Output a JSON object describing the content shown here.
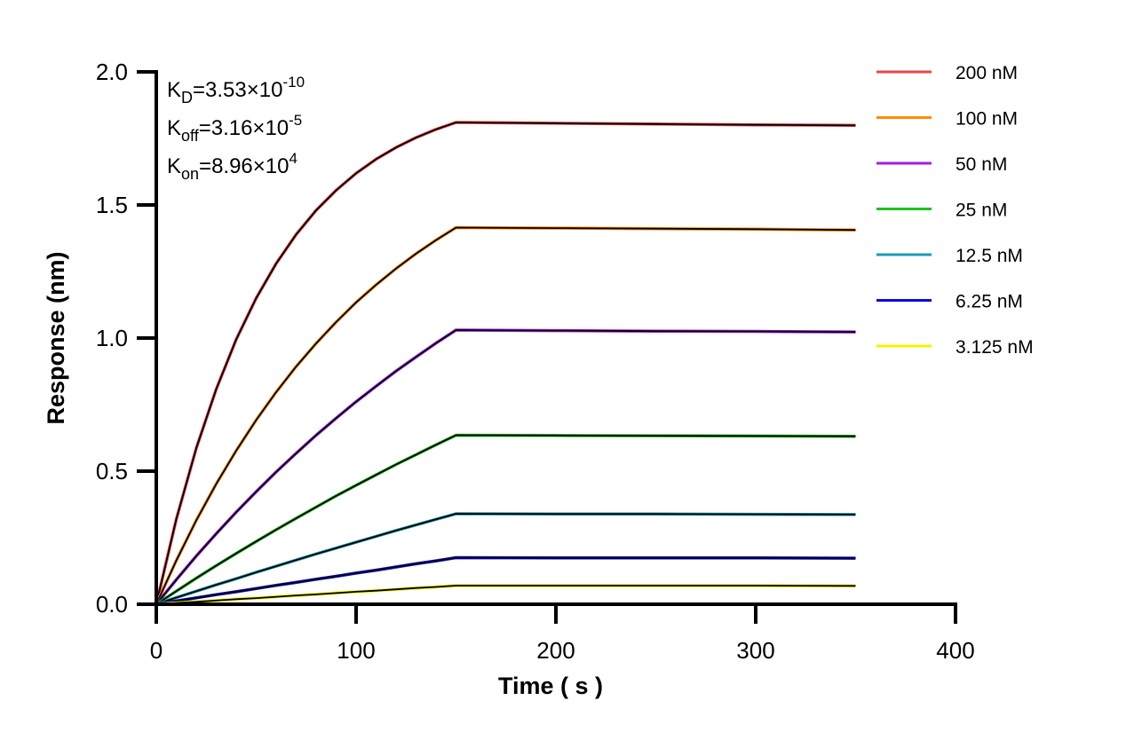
{
  "chart_data": {
    "type": "line",
    "xlabel": "Time ( s )",
    "ylabel": "Response (nm)",
    "xlim": [
      0,
      400
    ],
    "ylim": [
      0,
      2.0
    ],
    "xticks": [
      "0",
      "100",
      "200",
      "300",
      "400"
    ],
    "yticks": [
      "0.0",
      "0.5",
      "1.0",
      "1.5",
      "2.0"
    ],
    "grid": false,
    "legend_position": "right",
    "annotations": [
      {
        "base": "K",
        "sub": "D",
        "rest": "=3.53×10",
        "sup": "-10"
      },
      {
        "base": "K",
        "sub": "off",
        "rest": "=3.16×10",
        "sup": "-5"
      },
      {
        "base": "K",
        "sub": "on",
        "rest": "=8.96×10",
        "sup": "4"
      }
    ],
    "fit_color": "#000000",
    "x": [
      0,
      10,
      20,
      30,
      40,
      50,
      60,
      70,
      80,
      90,
      100,
      110,
      120,
      130,
      140,
      150,
      200,
      250,
      300,
      350
    ],
    "series": [
      {
        "name": "200 nM",
        "color": "#e8464a",
        "values": [
          0,
          0.319,
          0.586,
          0.808,
          0.995,
          1.15,
          1.28,
          1.389,
          1.48,
          1.555,
          1.619,
          1.672,
          1.716,
          1.753,
          1.784,
          1.81,
          1.807,
          1.804,
          1.801,
          1.799
        ]
      },
      {
        "name": "100 nM",
        "color": "#ff8c00",
        "values": [
          0,
          0.164,
          0.315,
          0.452,
          0.577,
          0.692,
          0.797,
          0.893,
          0.98,
          1.06,
          1.134,
          1.2,
          1.261,
          1.317,
          1.368,
          1.415,
          1.413,
          1.411,
          1.409,
          1.406
        ]
      },
      {
        "name": "50 nM",
        "color": "#a020e8",
        "values": [
          0,
          0.092,
          0.181,
          0.265,
          0.346,
          0.423,
          0.497,
          0.567,
          0.635,
          0.699,
          0.761,
          0.819,
          0.876,
          0.929,
          0.981,
          1.03,
          1.028,
          1.026,
          1.025,
          1.023
        ]
      },
      {
        "name": "25 nM",
        "color": "#1fc01c",
        "values": [
          0,
          0.049,
          0.098,
          0.145,
          0.191,
          0.236,
          0.28,
          0.323,
          0.365,
          0.407,
          0.447,
          0.486,
          0.525,
          0.562,
          0.599,
          0.635,
          0.634,
          0.633,
          0.632,
          0.631
        ]
      },
      {
        "name": "12.5 nM",
        "color": "#1e9bb4",
        "values": [
          0,
          0.025,
          0.049,
          0.073,
          0.096,
          0.12,
          0.143,
          0.166,
          0.189,
          0.211,
          0.233,
          0.255,
          0.277,
          0.298,
          0.319,
          0.34,
          0.339,
          0.339,
          0.338,
          0.337
        ]
      },
      {
        "name": "6.25 nM",
        "color": "#0a0ae0",
        "values": [
          0,
          0.012,
          0.024,
          0.036,
          0.047,
          0.059,
          0.071,
          0.082,
          0.094,
          0.105,
          0.117,
          0.128,
          0.14,
          0.152,
          0.163,
          0.175,
          0.174,
          0.174,
          0.174,
          0.173
        ]
      },
      {
        "name": "3.125 nM",
        "color": "#f5f000",
        "values": [
          0,
          0.005,
          0.009,
          0.014,
          0.019,
          0.023,
          0.028,
          0.033,
          0.037,
          0.042,
          0.047,
          0.051,
          0.056,
          0.061,
          0.065,
          0.07,
          0.07,
          0.07,
          0.07,
          0.069
        ]
      }
    ]
  }
}
